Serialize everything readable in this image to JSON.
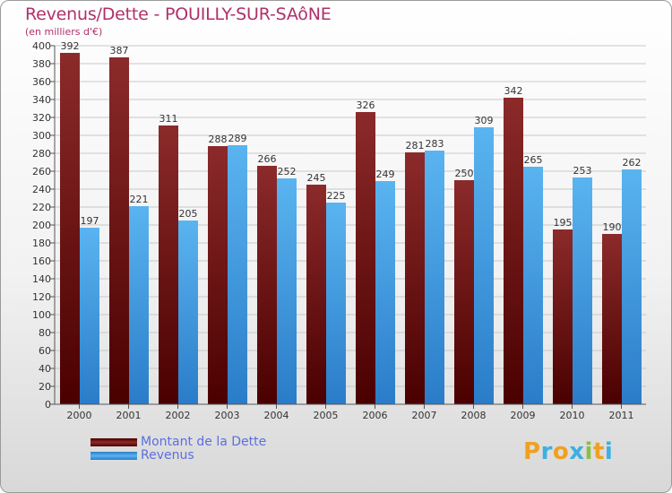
{
  "colors": {
    "title": "#b0306a",
    "dette": "#7a1717",
    "revenus": "#3a9ae0",
    "legend_text": "#5a6fe0",
    "grid": "#c8c8c8"
  },
  "logo": {
    "letters": [
      "P",
      "r",
      "o",
      "x",
      "i",
      "t",
      "i"
    ]
  },
  "chart_data": {
    "type": "bar",
    "title": "Revenus/Dette - POUILLY-SUR-SAôNE",
    "subtitle": "(en milliers d'€)",
    "xlabel": "",
    "ylabel": "",
    "ylim": [
      0,
      400
    ],
    "y_ticks": [
      0,
      20,
      40,
      60,
      80,
      100,
      120,
      140,
      160,
      180,
      200,
      220,
      240,
      260,
      280,
      300,
      320,
      340,
      360,
      380,
      400
    ],
    "grid": true,
    "legend_position": "bottom-left",
    "categories": [
      "2000",
      "2001",
      "2002",
      "2003",
      "2004",
      "2005",
      "2006",
      "2007",
      "2008",
      "2009",
      "2010",
      "2011"
    ],
    "series": [
      {
        "name": "Montant de la Dette",
        "values": [
          392,
          387,
          311,
          288,
          266,
          245,
          326,
          281,
          250,
          342,
          195,
          190
        ]
      },
      {
        "name": "Revenus",
        "values": [
          197,
          221,
          205,
          289,
          252,
          225,
          249,
          283,
          309,
          265,
          253,
          262
        ]
      }
    ]
  }
}
